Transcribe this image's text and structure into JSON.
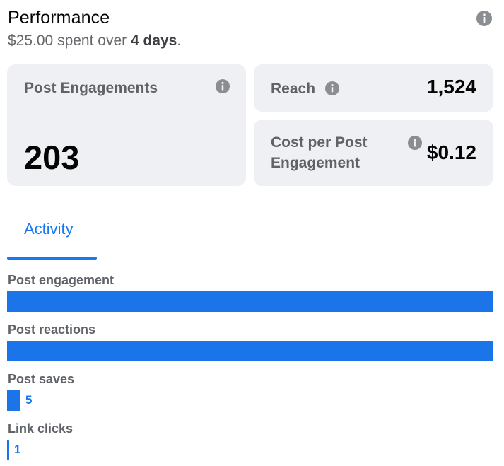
{
  "header": {
    "title": "Performance",
    "spent_amount": "$25.00",
    "spent_middle": " spent over ",
    "spent_days": "4 days",
    "spent_end": "."
  },
  "cards": {
    "post_engagements": {
      "label": "Post Engagements",
      "value": "203"
    },
    "reach": {
      "label": "Reach",
      "value": "1,524"
    },
    "cost_per_engagement": {
      "label_line1": "Cost per Post",
      "label_line2": "Engagement",
      "value": "$0.12"
    }
  },
  "tabs": {
    "activity": "Activity"
  },
  "activity": {
    "metrics": [
      {
        "label": "Post engagement",
        "count": "",
        "fill_fraction": 1.0
      },
      {
        "label": "Post reactions",
        "count": "",
        "fill_fraction": 1.0
      },
      {
        "label": "Post saves",
        "count": "5",
        "fill_fraction": 0.027
      },
      {
        "label": "Link clicks",
        "count": "1",
        "fill_fraction": 0.005
      }
    ]
  },
  "colors": {
    "accent": "#1877f2",
    "bar": "#1b74e8",
    "card_bg": "#eef0f3",
    "icon": "#8a8d91"
  },
  "icons": {
    "info": "info-icon"
  }
}
